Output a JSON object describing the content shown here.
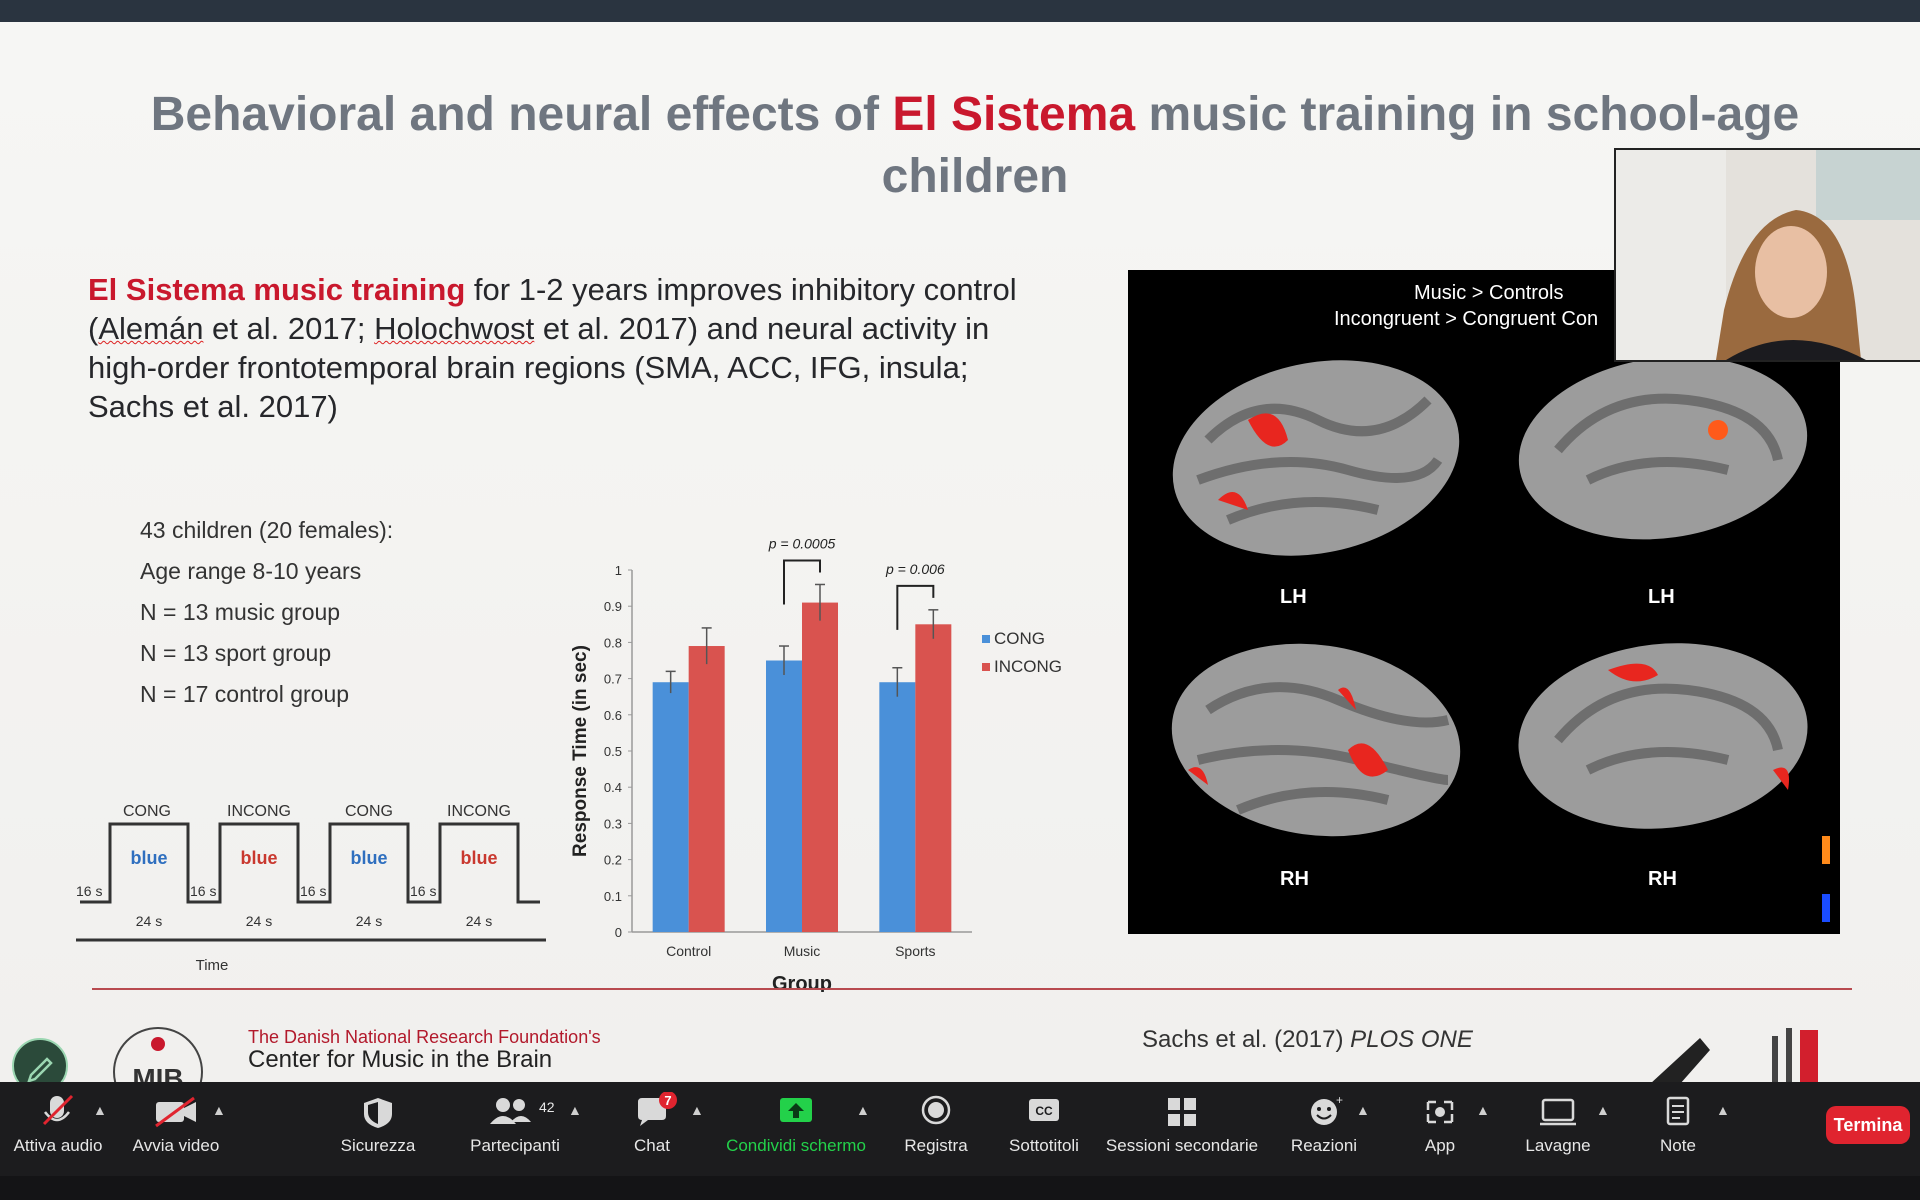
{
  "slide": {
    "title_part1": "Behavioral and neural effects of ",
    "title_highlight": "El Sistema",
    "title_part2": " music training in school-age children",
    "intro_highlight": "El Sistema music training",
    "intro_text1": " for 1-2 years improves inhibitory control (",
    "intro_cite1": "Alemán",
    "intro_text2": " et al. 2017; ",
    "intro_cite2": "Holochwost",
    "intro_text3": " et al. 2017) and neural activity in high-order frontotemporal brain regions (SMA, ACC, IFG, insula; Sachs et al. 2017)",
    "stats": [
      "43 children (20 females):",
      "Age range 8-10 years",
      "N = 13 music group",
      "N = 13 sport group",
      "N = 17 control group"
    ],
    "paradigm": {
      "blocks": [
        {
          "label": "CONG",
          "word": "blue",
          "word_color": "#2f6fbf"
        },
        {
          "label": "INCONG",
          "word": "blue",
          "word_color": "#c9382f"
        },
        {
          "label": "CONG",
          "word": "blue",
          "word_color": "#2f6fbf"
        },
        {
          "label": "INCONG",
          "word": "blue",
          "word_color": "#c9382f"
        }
      ],
      "rest_label": "16 s",
      "block_duration": "24 s",
      "axis_label": "Time"
    },
    "brain_panel": {
      "title_line1": "Music > Controls",
      "title_line2": "Incongruent > Congruent Con",
      "labels": [
        "LH",
        "LH",
        "RH",
        "RH"
      ]
    },
    "footer": {
      "org_line1": "The Danish National Research Foundation's",
      "org_line2": "Center for Music in the Brain",
      "logo_text": "MIB",
      "citation_authors": "Sachs et al. (2017) ",
      "citation_journal": "PLOS ONE"
    }
  },
  "chart_data": {
    "type": "bar",
    "categories": [
      "Control",
      "Music",
      "Sports"
    ],
    "series": [
      {
        "name": "CONG",
        "values": [
          0.69,
          0.75,
          0.69
        ],
        "errors": [
          0.03,
          0.04,
          0.04
        ],
        "color": "#4a90d9"
      },
      {
        "name": "INCONG",
        "values": [
          0.79,
          0.91,
          0.85
        ],
        "errors": [
          0.05,
          0.05,
          0.04
        ],
        "color": "#d9534f"
      }
    ],
    "ylim": [
      0,
      1
    ],
    "yticks": [
      "0",
      "0.1",
      "0.2",
      "0.3",
      "0.4",
      "0.5",
      "0.6",
      "0.7",
      "0.8",
      "0.9",
      "1"
    ],
    "xlabel": "Group",
    "ylabel": "Response Time (in sec)",
    "annotations": [
      {
        "category": "Music",
        "text": "p = 0.0005"
      },
      {
        "category": "Sports",
        "text": "p = 0.006"
      }
    ],
    "legend_placement": "right"
  },
  "toolbar": {
    "items": [
      {
        "label": "Attiva audio",
        "icon": "muted-microphone-icon"
      },
      {
        "label": "Avvia video",
        "icon": "video-off-icon"
      },
      {
        "label": "Sicurezza",
        "icon": "shield-icon"
      },
      {
        "label": "Partecipanti",
        "icon": "participants-icon",
        "count": "42"
      },
      {
        "label": "Chat",
        "icon": "chat-icon",
        "badge": "7"
      },
      {
        "label": "Condividi schermo",
        "icon": "share-screen-icon",
        "color": "#23d14a"
      },
      {
        "label": "Registra",
        "icon": "record-icon"
      },
      {
        "label": "Sottotitoli",
        "icon": "cc-icon",
        "icon_text": "CC"
      },
      {
        "label": "Sessioni secondarie",
        "icon": "breakout-rooms-icon"
      },
      {
        "label": "Reazioni",
        "icon": "reactions-icon"
      },
      {
        "label": "App",
        "icon": "apps-icon"
      },
      {
        "label": "Lavagne",
        "icon": "whiteboard-icon"
      },
      {
        "label": "Note",
        "icon": "notes-icon"
      }
    ],
    "end_label": "Termina",
    "end_color": "#e0242f"
  }
}
